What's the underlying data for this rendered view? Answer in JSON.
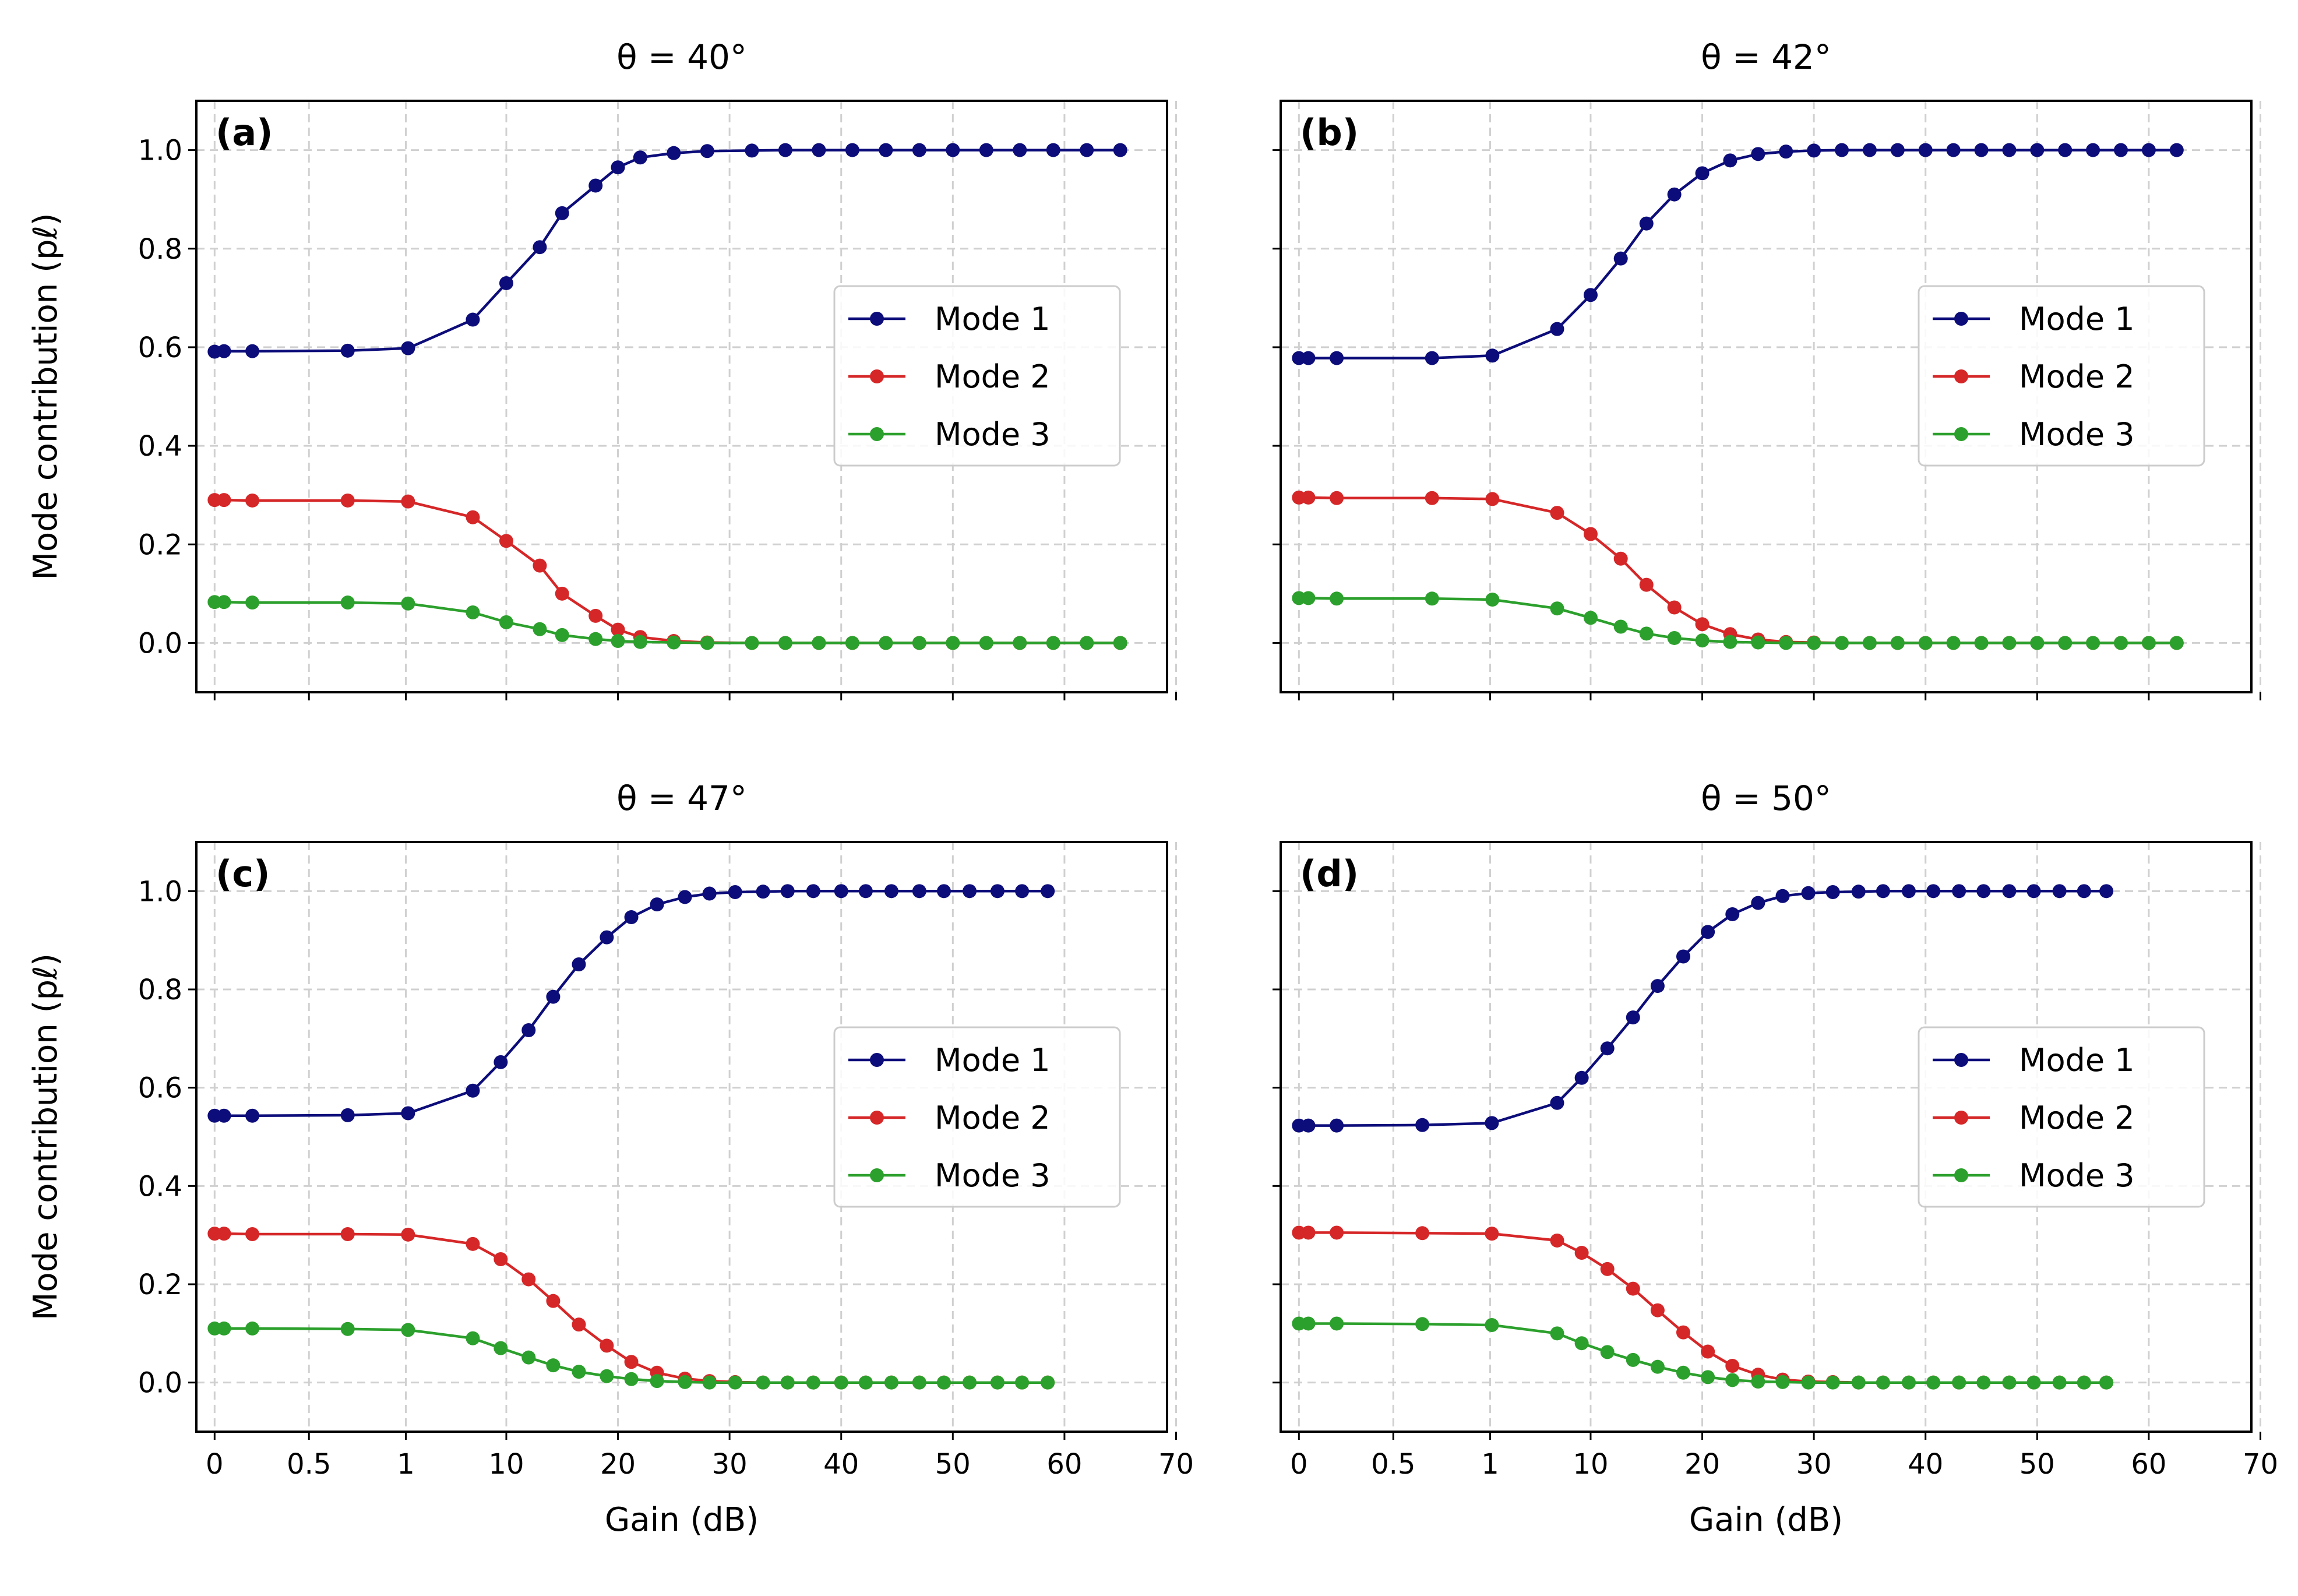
{
  "chart_data": [
    {
      "type": "line",
      "panel": "(a)",
      "title": "θ = 40°",
      "xlabel": "",
      "ylabel": "Mode contribution (pℓ)",
      "xlim": [
        -0.7,
        70
      ],
      "ylim": [
        -0.1,
        1.1
      ],
      "x_axis_scale": "piecewise: 0–1 linear, 1–70 linear (broken scale)",
      "xticks": [
        "0",
        "0.5",
        "1",
        "10",
        "20",
        "30",
        "40",
        "50",
        "60",
        "70"
      ],
      "yticks": [
        "0.0",
        "0.2",
        "0.4",
        "0.6",
        "0.8",
        "1.0"
      ],
      "grid": true,
      "legend_position": "center-right",
      "x": [
        0,
        0.05,
        0.2,
        0.7,
        1.2,
        7,
        10,
        13,
        15,
        18,
        20,
        22,
        25,
        28,
        32,
        35,
        38,
        41,
        44,
        47,
        50,
        53,
        56,
        59,
        62,
        65
      ],
      "series": [
        {
          "name": "Mode 1",
          "color": "#0c0c7a",
          "values": [
            0.591,
            0.592,
            0.592,
            0.593,
            0.598,
            0.656,
            0.73,
            0.803,
            0.872,
            0.928,
            0.965,
            0.985,
            0.994,
            0.998,
            0.999,
            1.0,
            1.0,
            1.0,
            1.0,
            1.0,
            1.0,
            1.0,
            1.0,
            1.0,
            1.0,
            1.0
          ]
        },
        {
          "name": "Mode 2",
          "color": "#d62728",
          "values": [
            0.29,
            0.29,
            0.289,
            0.289,
            0.287,
            0.255,
            0.207,
            0.157,
            0.1,
            0.055,
            0.027,
            0.012,
            0.004,
            0.001,
            0.0,
            0.0,
            0.0,
            0.0,
            0.0,
            0.0,
            0.0,
            0.0,
            0.0,
            0.0,
            0.0,
            0.0
          ]
        },
        {
          "name": "Mode 3",
          "color": "#2ca02c",
          "values": [
            0.083,
            0.083,
            0.082,
            0.082,
            0.08,
            0.062,
            0.042,
            0.028,
            0.016,
            0.008,
            0.004,
            0.002,
            0.001,
            0.0,
            0.0,
            0.0,
            0.0,
            0.0,
            0.0,
            0.0,
            0.0,
            0.0,
            0.0,
            0.0,
            0.0,
            0.0
          ]
        }
      ]
    },
    {
      "type": "line",
      "panel": "(b)",
      "title": "θ = 42°",
      "xlabel": "",
      "ylabel": "",
      "xlim": [
        -0.7,
        70
      ],
      "ylim": [
        -0.1,
        1.1
      ],
      "grid": true,
      "legend_position": "center-right",
      "x": [
        0,
        0.05,
        0.2,
        0.7,
        1.2,
        7,
        10,
        12.7,
        15,
        17.5,
        20,
        22.5,
        25,
        27.5,
        30,
        32.5,
        35,
        37.5,
        40,
        42.5,
        45,
        47.5,
        50,
        52.5,
        55,
        57.5,
        60,
        62.5
      ],
      "series": [
        {
          "name": "Mode 1",
          "color": "#0c0c7a",
          "values": [
            0.578,
            0.578,
            0.578,
            0.578,
            0.583,
            0.637,
            0.706,
            0.78,
            0.851,
            0.91,
            0.953,
            0.979,
            0.992,
            0.997,
            0.999,
            1.0,
            1.0,
            1.0,
            1.0,
            1.0,
            1.0,
            1.0,
            1.0,
            1.0,
            1.0,
            1.0,
            1.0,
            1.0
          ]
        },
        {
          "name": "Mode 2",
          "color": "#d62728",
          "values": [
            0.295,
            0.295,
            0.294,
            0.294,
            0.292,
            0.264,
            0.221,
            0.171,
            0.118,
            0.072,
            0.038,
            0.018,
            0.007,
            0.002,
            0.001,
            0.0,
            0.0,
            0.0,
            0.0,
            0.0,
            0.0,
            0.0,
            0.0,
            0.0,
            0.0,
            0.0,
            0.0,
            0.0
          ]
        },
        {
          "name": "Mode 3",
          "color": "#2ca02c",
          "values": [
            0.091,
            0.091,
            0.09,
            0.09,
            0.088,
            0.07,
            0.051,
            0.033,
            0.019,
            0.01,
            0.005,
            0.002,
            0.001,
            0.0,
            0.0,
            0.0,
            0.0,
            0.0,
            0.0,
            0.0,
            0.0,
            0.0,
            0.0,
            0.0,
            0.0,
            0.0,
            0.0,
            0.0
          ]
        }
      ]
    },
    {
      "type": "line",
      "panel": "(c)",
      "title": "θ = 47°",
      "xlabel": "Gain (dB)",
      "ylabel": "Mode contribution (pℓ)",
      "xlim": [
        -0.7,
        70
      ],
      "ylim": [
        -0.1,
        1.1
      ],
      "grid": true,
      "legend_position": "center-right",
      "x": [
        0,
        0.05,
        0.2,
        0.7,
        1.2,
        7,
        9.5,
        12,
        14.2,
        16.5,
        19,
        21.2,
        23.5,
        26,
        28.2,
        30.5,
        33,
        35.2,
        37.5,
        40,
        42.2,
        44.5,
        47,
        49.2,
        51.5,
        54,
        56.2,
        58.5
      ],
      "series": [
        {
          "name": "Mode 1",
          "color": "#0c0c7a",
          "values": [
            0.543,
            0.543,
            0.543,
            0.544,
            0.548,
            0.594,
            0.652,
            0.717,
            0.785,
            0.851,
            0.906,
            0.947,
            0.973,
            0.988,
            0.995,
            0.998,
            0.999,
            1.0,
            1.0,
            1.0,
            1.0,
            1.0,
            1.0,
            1.0,
            1.0,
            1.0,
            1.0,
            1.0
          ]
        },
        {
          "name": "Mode 2",
          "color": "#d62728",
          "values": [
            0.303,
            0.303,
            0.302,
            0.302,
            0.301,
            0.282,
            0.251,
            0.21,
            0.166,
            0.118,
            0.075,
            0.042,
            0.02,
            0.008,
            0.003,
            0.001,
            0.0,
            0.0,
            0.0,
            0.0,
            0.0,
            0.0,
            0.0,
            0.0,
            0.0,
            0.0,
            0.0,
            0.0
          ]
        },
        {
          "name": "Mode 3",
          "color": "#2ca02c",
          "values": [
            0.11,
            0.11,
            0.11,
            0.109,
            0.107,
            0.09,
            0.07,
            0.051,
            0.035,
            0.022,
            0.013,
            0.007,
            0.003,
            0.001,
            0.0,
            0.0,
            0.0,
            0.0,
            0.0,
            0.0,
            0.0,
            0.0,
            0.0,
            0.0,
            0.0,
            0.0,
            0.0,
            0.0
          ]
        }
      ]
    },
    {
      "type": "line",
      "panel": "(d)",
      "title": "θ = 50°",
      "xlabel": "Gain (dB)",
      "ylabel": "",
      "xlim": [
        -0.7,
        70
      ],
      "ylim": [
        -0.1,
        1.1
      ],
      "grid": true,
      "legend_position": "center-right",
      "x": [
        0,
        0.05,
        0.2,
        0.65,
        1.15,
        7,
        9.2,
        11.5,
        13.8,
        16,
        18.3,
        20.5,
        22.7,
        25,
        27.2,
        29.5,
        31.7,
        34,
        36.2,
        38.5,
        40.7,
        43,
        45.2,
        47.5,
        49.7,
        52,
        54.2,
        56.2
      ],
      "series": [
        {
          "name": "Mode 1",
          "color": "#0c0c7a",
          "values": [
            0.523,
            0.523,
            0.523,
            0.524,
            0.528,
            0.569,
            0.62,
            0.68,
            0.743,
            0.807,
            0.867,
            0.917,
            0.953,
            0.976,
            0.99,
            0.996,
            0.998,
            0.999,
            1.0,
            1.0,
            1.0,
            1.0,
            1.0,
            1.0,
            1.0,
            1.0,
            1.0,
            1.0
          ]
        },
        {
          "name": "Mode 2",
          "color": "#d62728",
          "values": [
            0.305,
            0.305,
            0.305,
            0.304,
            0.303,
            0.289,
            0.264,
            0.231,
            0.191,
            0.147,
            0.102,
            0.063,
            0.034,
            0.016,
            0.006,
            0.002,
            0.001,
            0.0,
            0.0,
            0.0,
            0.0,
            0.0,
            0.0,
            0.0,
            0.0,
            0.0,
            0.0,
            0.0
          ]
        },
        {
          "name": "Mode 3",
          "color": "#2ca02c",
          "values": [
            0.12,
            0.12,
            0.12,
            0.119,
            0.117,
            0.1,
            0.08,
            0.062,
            0.046,
            0.032,
            0.02,
            0.011,
            0.005,
            0.002,
            0.001,
            0.0,
            0.0,
            0.0,
            0.0,
            0.0,
            0.0,
            0.0,
            0.0,
            0.0,
            0.0,
            0.0,
            0.0,
            0.0
          ]
        }
      ]
    }
  ]
}
